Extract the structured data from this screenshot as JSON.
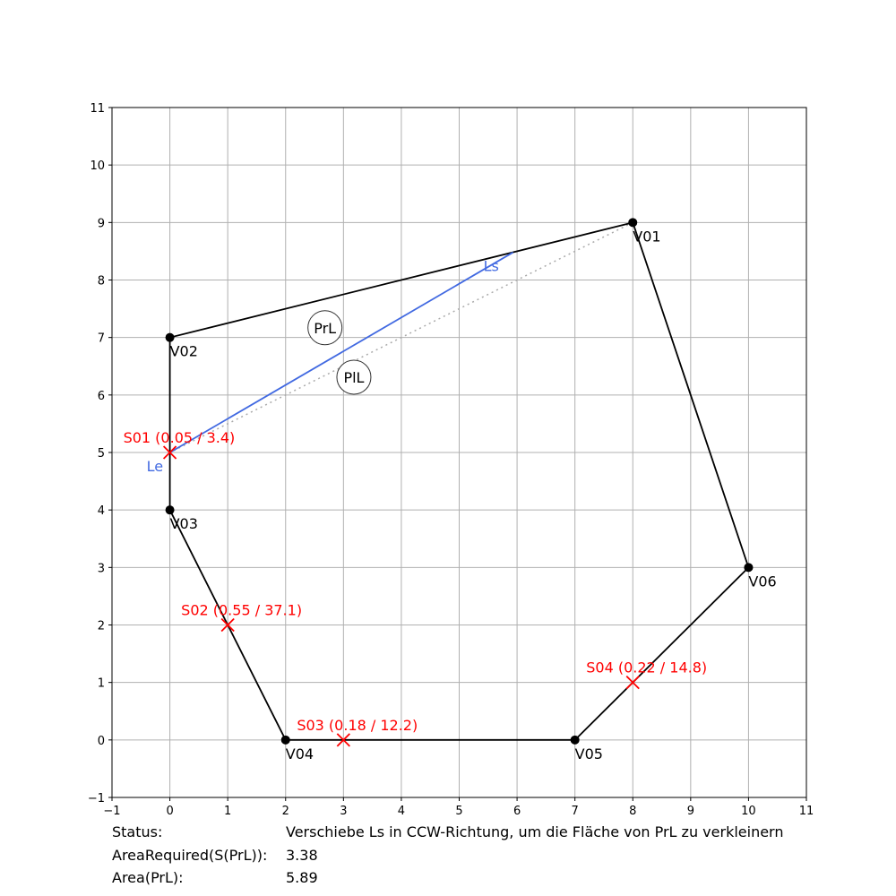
{
  "chart_data": {
    "type": "scatter",
    "xlim": [
      -1,
      11
    ],
    "ylim": [
      -1,
      11
    ],
    "grid": true,
    "xticks": [
      -1,
      0,
      1,
      2,
      3,
      4,
      5,
      6,
      7,
      8,
      9,
      10,
      11
    ],
    "yticks": [
      -1,
      0,
      1,
      2,
      3,
      4,
      5,
      6,
      7,
      8,
      9,
      10,
      11
    ],
    "vertices": [
      {
        "label": "V01",
        "x": 8,
        "y": 9
      },
      {
        "label": "V02",
        "x": 0,
        "y": 7
      },
      {
        "label": "V03",
        "x": 0,
        "y": 4
      },
      {
        "label": "V04",
        "x": 2,
        "y": 0
      },
      {
        "label": "V05",
        "x": 7,
        "y": 0
      },
      {
        "label": "V06",
        "x": 10,
        "y": 3
      }
    ],
    "split_points": [
      {
        "label": "S01 (0.05 / 3.4)",
        "x": 0,
        "y": 5
      },
      {
        "label": "S02 (0.55 / 37.1)",
        "x": 1,
        "y": 2
      },
      {
        "label": "S03 (0.18 / 12.2)",
        "x": 3,
        "y": 0
      },
      {
        "label": "S04 (0.22 / 14.8)",
        "x": 8,
        "y": 1
      }
    ],
    "split_line": {
      "start_label": "Ls",
      "end_label": "Le",
      "start": {
        "x": 5.93,
        "y": 8.48
      },
      "end": {
        "x": 0,
        "y": 5
      },
      "color": "#4169e1"
    },
    "previous_line": {
      "start": {
        "x": 8,
        "y": 9
      },
      "end": {
        "x": 0,
        "y": 5
      },
      "color": "#aaaaaa"
    },
    "region_labels": [
      {
        "label": "PrL",
        "x": 2.68,
        "y": 7.17
      },
      {
        "label": "PlL",
        "x": 3.18,
        "y": 6.31
      }
    ],
    "colors": {
      "polygon": "#000000",
      "split": "#ff0000",
      "grid": "#b0b0b0"
    }
  },
  "status": {
    "rows": [
      {
        "label": "Status:",
        "value": "Verschiebe Ls in CCW-Richtung, um die Fläche von PrL zu verkleinern"
      },
      {
        "label": "AreaRequired(S(PrL)):",
        "value": "3.38"
      },
      {
        "label": "Area(PrL):",
        "value": "5.89"
      }
    ]
  }
}
